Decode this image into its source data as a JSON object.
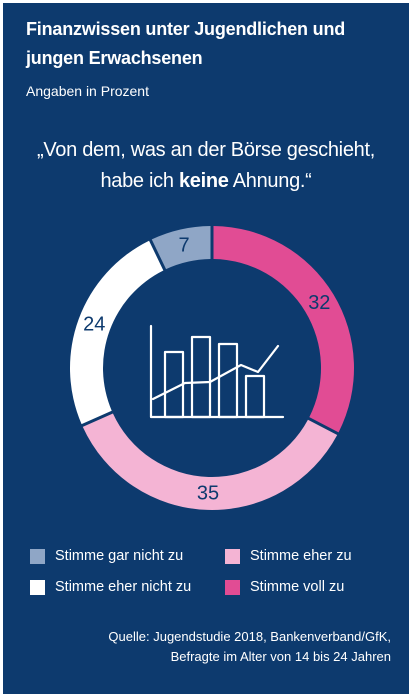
{
  "colors": {
    "background": "#0d3a6e",
    "text": "#ffffff",
    "gar_nicht": "#8fa6c6",
    "eher_nicht": "#ffffff",
    "eher_zu": "#f4b4d4",
    "voll_zu": "#e14c94",
    "icon": "#ffffff"
  },
  "chart_data": {
    "type": "pie",
    "variant": "donut",
    "title": "Finanzwissen unter Jugendlichen und jungen Erwachsenen",
    "subtitle": "Angaben in Prozent",
    "question": {
      "line1": "„Von dem, was an der Börse geschieht,",
      "line2_pre": "habe ich ",
      "line2_bold": "keine",
      "line2_post": " Ahnung.“"
    },
    "slices": [
      {
        "label": "Stimme voll zu",
        "value": 32,
        "color": "#e14c94",
        "label_color": "#0d3a6e"
      },
      {
        "label": "Stimme eher zu",
        "value": 35,
        "color": "#f4b4d4",
        "label_color": "#0d3a6e"
      },
      {
        "label": "Stimme eher nicht zu",
        "value": 24,
        "color": "#ffffff",
        "label_color": "#0d3a6e"
      },
      {
        "label": "Stimme gar nicht zu",
        "value": 7,
        "color": "#8fa6c6",
        "label_color": "#0d3a6e"
      }
    ],
    "center_icon": "bar-line-chart-icon",
    "legend": [
      {
        "label": "Stimme gar nicht zu",
        "color": "#8fa6c6"
      },
      {
        "label": "Stimme eher nicht zu",
        "color": "#ffffff"
      },
      {
        "label": "Stimme eher zu",
        "color": "#f4b4d4"
      },
      {
        "label": "Stimme voll zu",
        "color": "#e14c94"
      }
    ]
  },
  "source": {
    "line1": "Quelle: Jugendstudie 2018, Bankenverband/GfK,",
    "line2": "Befragte im Alter von 14 bis 24 Jahren"
  }
}
